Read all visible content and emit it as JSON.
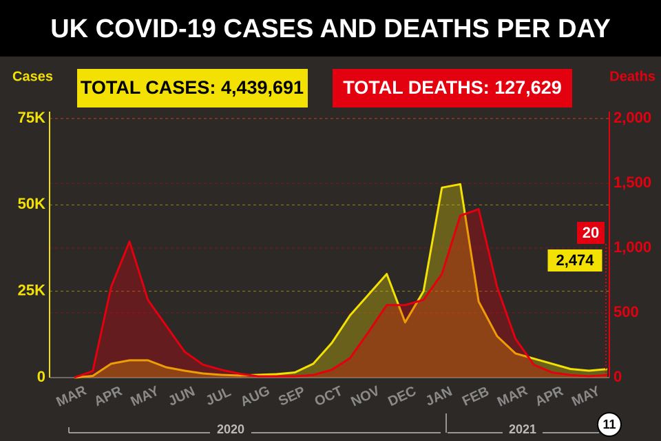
{
  "chart_data": {
    "type": "line",
    "title": "UK COVID-19 CASES AND DEATHS PER DAY",
    "annotations": [
      "TOTAL CASES: 4,439,691",
      "TOTAL DEATHS: 127,629"
    ],
    "years": [
      "2020",
      "2021"
    ],
    "badge": "11",
    "categories": [
      "MAR",
      null,
      "APR",
      null,
      "MAY",
      null,
      "JUN",
      null,
      "JUL",
      null,
      "AUG",
      null,
      "SEP",
      null,
      "OCT",
      null,
      "NOV",
      null,
      "DEC",
      null,
      "JAN",
      null,
      "FEB",
      null,
      "MAR",
      null,
      "APR",
      null,
      "MAY",
      null
    ],
    "series": [
      {
        "name": "Cases",
        "color": "#f4e104",
        "values": [
          0,
          500,
          4000,
          5000,
          5000,
          3000,
          2000,
          1200,
          800,
          600,
          800,
          1000,
          1500,
          4000,
          10000,
          18000,
          24000,
          30000,
          16000,
          25000,
          55000,
          56000,
          22000,
          12000,
          7000,
          5500,
          4000,
          2500,
          2000,
          2474
        ],
        "value_labels": [
          null,
          null,
          null,
          null,
          null,
          null,
          null,
          null,
          null,
          null,
          null,
          null,
          null,
          null,
          null,
          null,
          null,
          null,
          null,
          null,
          null,
          null,
          null,
          null,
          null,
          null,
          null,
          null,
          null,
          "2,474"
        ]
      },
      {
        "name": "Deaths",
        "color": "#e3000f",
        "axis": "y2",
        "values": [
          0,
          50,
          700,
          1050,
          600,
          400,
          200,
          100,
          60,
          30,
          10,
          10,
          10,
          20,
          60,
          150,
          350,
          560,
          560,
          600,
          800,
          1250,
          1300,
          700,
          300,
          100,
          40,
          20,
          10,
          20
        ],
        "value_labels": [
          null,
          null,
          null,
          null,
          null,
          null,
          null,
          null,
          null,
          null,
          null,
          null,
          null,
          null,
          null,
          null,
          null,
          null,
          null,
          null,
          null,
          null,
          null,
          null,
          null,
          null,
          null,
          null,
          null,
          20
        ]
      }
    ],
    "ylim": [
      0,
      75000
    ],
    "yticks": [
      0,
      {
        "value": 25000,
        "label": "25K"
      },
      {
        "value": 50000,
        "label": "50K"
      },
      {
        "value": 75000,
        "label": "75K"
      }
    ],
    "y2lim": [
      0,
      2000
    ],
    "y2ticks": [
      0,
      500,
      {
        "value": 1000,
        "label": "1,000"
      },
      {
        "value": 1500,
        "label": "1,500"
      },
      {
        "value": 2000,
        "label": "2,000"
      }
    ],
    "grid": true
  }
}
